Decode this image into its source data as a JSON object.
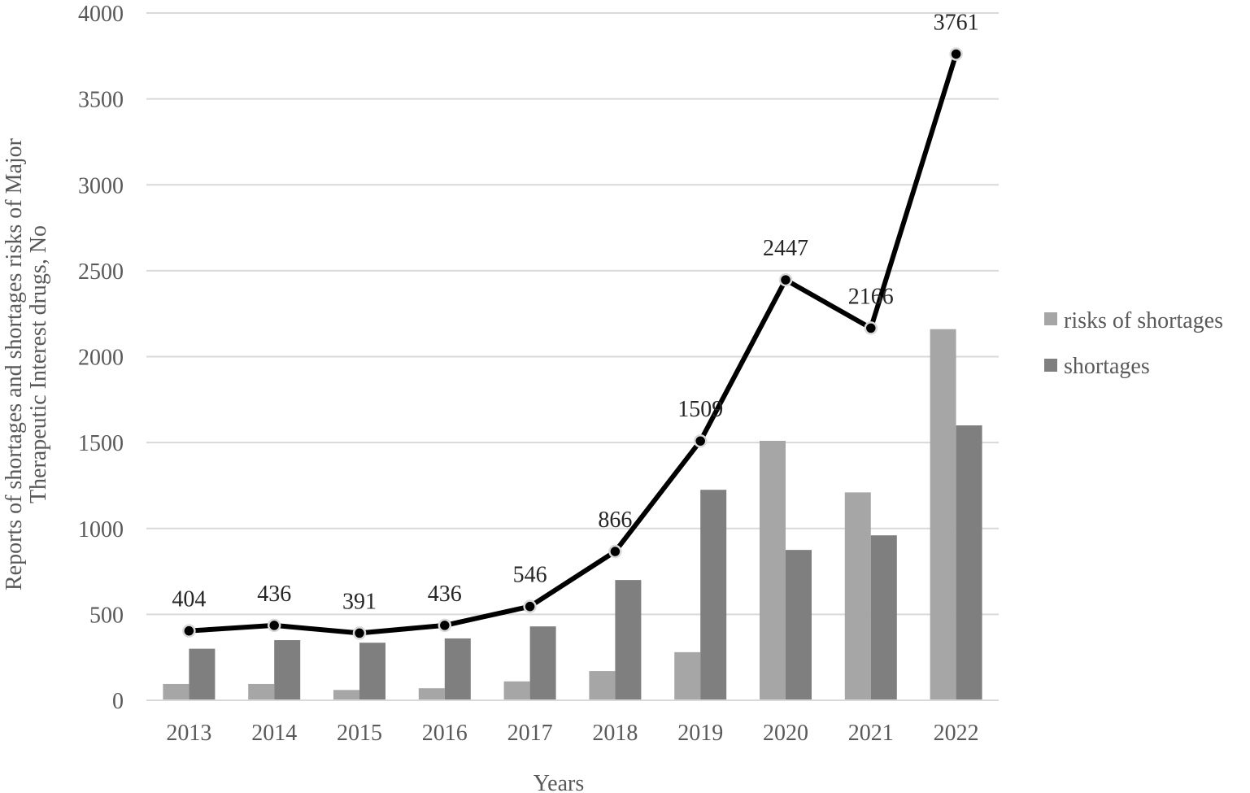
{
  "chart_data": {
    "type": "bar",
    "title": "",
    "xlabel": "Years",
    "ylabel_lines": [
      "Reports of shortages and shortages risks of Major",
      "Therapeutic Interest drugs, No"
    ],
    "ylim": [
      0,
      4000
    ],
    "ytick_step": 500,
    "categories": [
      "2013",
      "2014",
      "2015",
      "2016",
      "2017",
      "2018",
      "2019",
      "2020",
      "2021",
      "2022"
    ],
    "series": [
      {
        "name": "risks of shortages",
        "kind": "bar",
        "color": "#a6a6a6",
        "values": [
          95,
          95,
          60,
          70,
          110,
          170,
          280,
          1510,
          1210,
          2160
        ]
      },
      {
        "name": "shortages",
        "kind": "bar",
        "color": "#7f7f7f",
        "values": [
          300,
          350,
          335,
          360,
          430,
          700,
          1225,
          875,
          960,
          1600
        ]
      },
      {
        "name": "",
        "kind": "line",
        "color": "#000000",
        "values": [
          404,
          436,
          391,
          436,
          546,
          866,
          1509,
          2447,
          2166,
          3761
        ]
      }
    ],
    "line_labels": [
      "404",
      "436",
      "391",
      "436",
      "546",
      "866",
      "1509",
      "2447",
      "2166",
      "3761"
    ],
    "grid": true,
    "legend_position": "right"
  }
}
